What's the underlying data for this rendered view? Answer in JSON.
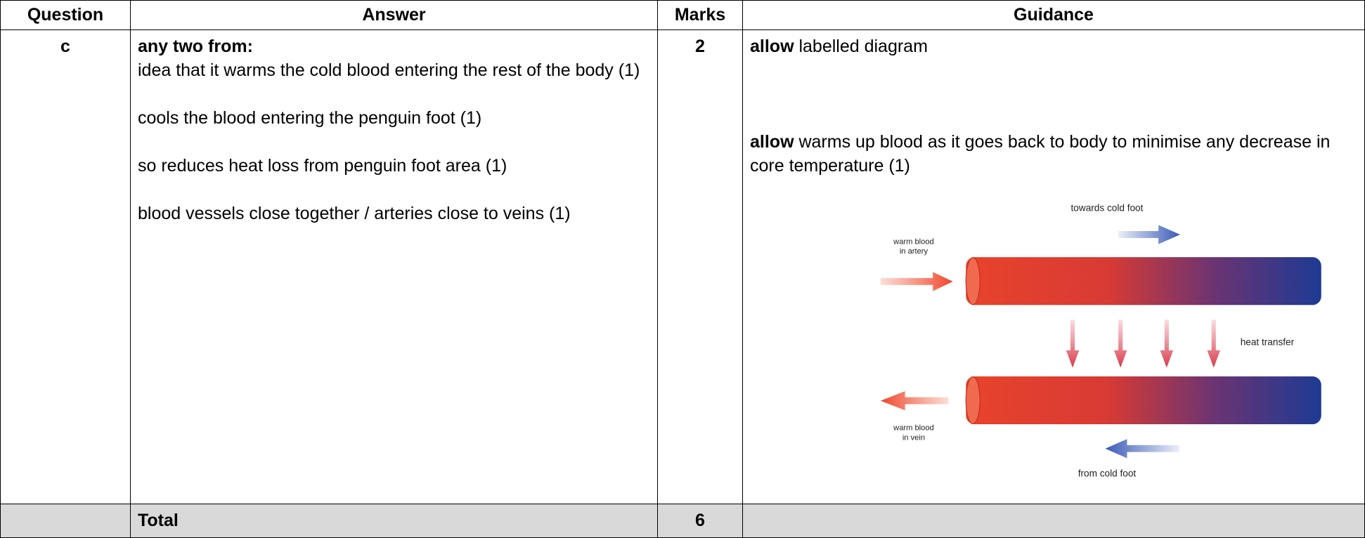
{
  "table": {
    "headers": [
      "Question",
      "Answer",
      "Marks",
      "Guidance"
    ],
    "rows": [
      {
        "question": "c",
        "answer": {
          "heading": "any two from:",
          "points": [
            "idea that it warms the cold blood entering the rest of the body (1)",
            "cools the blood entering the penguin foot (1)",
            "so reduces heat loss from penguin foot area (1)",
            "blood vessels close together / arteries close to veins (1)"
          ]
        },
        "marks": 2,
        "guidance": [
          {
            "keyword": "allow",
            "text": "labelled diagram"
          },
          {
            "keyword": "allow",
            "text": "warms up blood as it goes back to body to minimise any decrease in core temperature (1)"
          }
        ]
      }
    ],
    "total": {
      "label": "Total",
      "marks": 6
    }
  },
  "diagram": {
    "towards": "towards cold foot",
    "artery": [
      "warm blood",
      "in artery"
    ],
    "heat": "heat transfer",
    "vein": [
      "warm blood",
      "in vein"
    ],
    "from": "from cold foot"
  }
}
